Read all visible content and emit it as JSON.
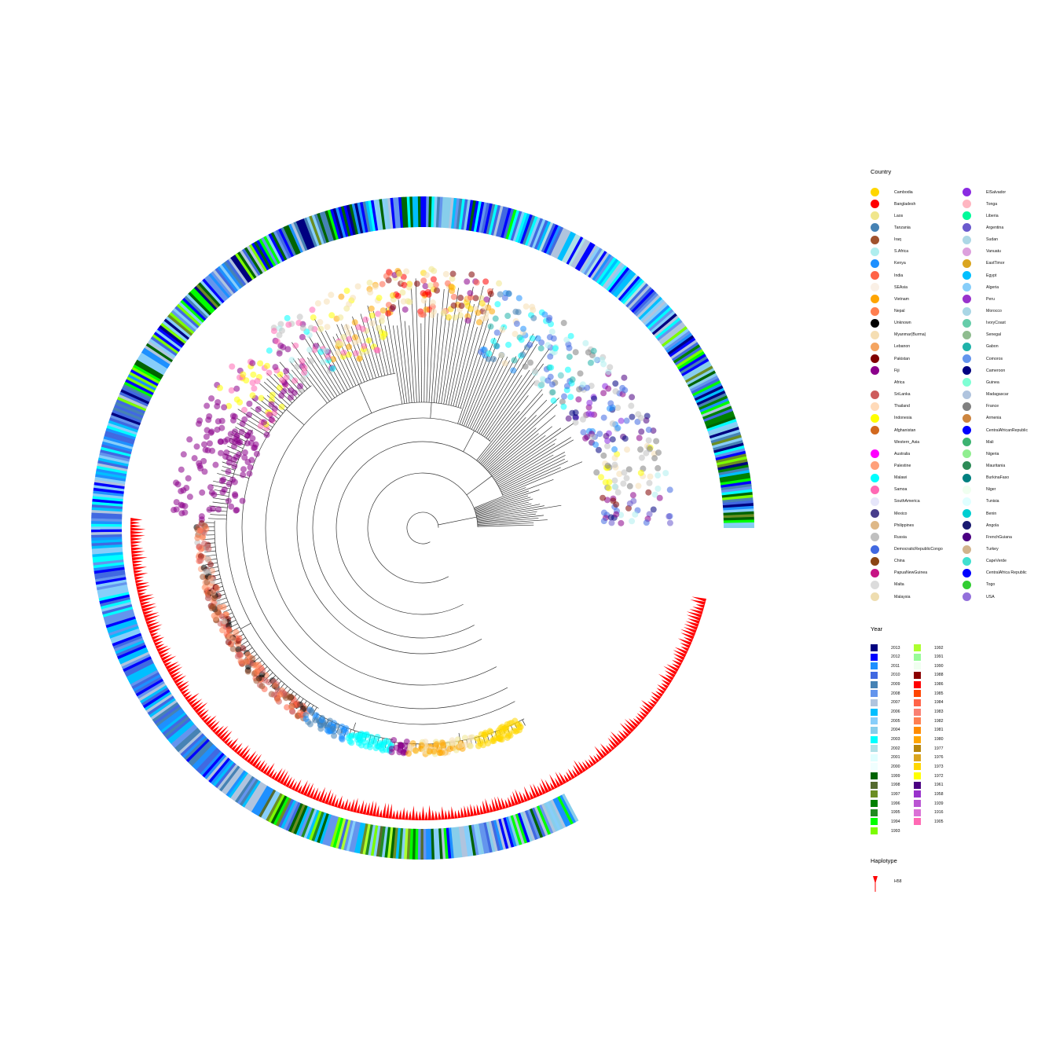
{
  "legend": {
    "country_title": "Country",
    "year_title": "Year",
    "haplotype_title": "Haplotype",
    "countries": [
      {
        "name": "Cambodia",
        "color": "#FFD700"
      },
      {
        "name": "Bangladesh",
        "color": "#FF0000"
      },
      {
        "name": "Laos",
        "color": "#F0E68C"
      },
      {
        "name": "Tanzania",
        "color": "#4682B4"
      },
      {
        "name": "Iraq",
        "color": "#A0522D"
      },
      {
        "name": "S.Africa",
        "color": "#AFEEEE"
      },
      {
        "name": "Kenya",
        "color": "#1E90FF"
      },
      {
        "name": "India",
        "color": "#FF6347"
      },
      {
        "name": "SEAsia",
        "color": "#FAF0E6"
      },
      {
        "name": "Vietnam",
        "color": "#FFA500"
      },
      {
        "name": "Nepal",
        "color": "#FF7F50"
      },
      {
        "name": "Unknown",
        "color": "#000000"
      },
      {
        "name": "Myanmar(Burma)",
        "color": "#F5DEB3"
      },
      {
        "name": "Lebanon",
        "color": "#F4A460"
      },
      {
        "name": "Pakistan",
        "color": "#800000"
      },
      {
        "name": "Fiji",
        "color": "#8B008B"
      },
      {
        "name": "Africa",
        "color": "#FFFFFF"
      },
      {
        "name": "SriLanka",
        "color": "#CD5C5C"
      },
      {
        "name": "Thailand",
        "color": "#FFDAB9"
      },
      {
        "name": "Indonesia",
        "color": "#FFFF00"
      },
      {
        "name": "Afghanistan",
        "color": "#D2691E"
      },
      {
        "name": "Western_Asia",
        "color": "#FFFFFF"
      },
      {
        "name": "Australia",
        "color": "#FF00FF"
      },
      {
        "name": "Palestine",
        "color": "#FFA07A"
      },
      {
        "name": "Malawi",
        "color": "#00FFFF"
      },
      {
        "name": "Samoa",
        "color": "#FF69B4"
      },
      {
        "name": "SouthAmerica",
        "color": "#E6E6FA"
      },
      {
        "name": "Mexico",
        "color": "#483D8B"
      },
      {
        "name": "Philippines",
        "color": "#DEB887"
      },
      {
        "name": "Russia",
        "color": "#C0C0C0"
      },
      {
        "name": "DemocraticRepublicCongo",
        "color": "#4169E1"
      },
      {
        "name": "China",
        "color": "#8B4513"
      },
      {
        "name": "PapuaNewGuinea",
        "color": "#C71585"
      },
      {
        "name": "Malta",
        "color": "#DCDCDC"
      },
      {
        "name": "Malaysia",
        "color": "#EEDDB0"
      },
      {
        "name": "ElSalvador",
        "color": "#8A2BE2"
      },
      {
        "name": "Tonga",
        "color": "#FFB6C1"
      },
      {
        "name": "Liberia",
        "color": "#00FA9A"
      },
      {
        "name": "Argentina",
        "color": "#6A5ACD"
      },
      {
        "name": "Sudan",
        "color": "#ADD8E6"
      },
      {
        "name": "Vanuatu",
        "color": "#DDA0DD"
      },
      {
        "name": "EastTimor",
        "color": "#DAA520"
      },
      {
        "name": "Egypt",
        "color": "#00BFFF"
      },
      {
        "name": "Algeria",
        "color": "#87CEFA"
      },
      {
        "name": "Peru",
        "color": "#9932CC"
      },
      {
        "name": "Morocco",
        "color": "#A9D6E5"
      },
      {
        "name": "IvoryCoast",
        "color": "#66CDAA"
      },
      {
        "name": "Senegal",
        "color": "#8FBC8F"
      },
      {
        "name": "Gabon",
        "color": "#20B2AA"
      },
      {
        "name": "Comoros",
        "color": "#6495ED"
      },
      {
        "name": "Cameroon",
        "color": "#000080"
      },
      {
        "name": "Guinea",
        "color": "#7FFFD4"
      },
      {
        "name": "Madagascar",
        "color": "#B0C4DE"
      },
      {
        "name": "France",
        "color": "#808080"
      },
      {
        "name": "Armenia",
        "color": "#CD853F"
      },
      {
        "name": "CentralAfricanRepublic",
        "color": "#0000FF"
      },
      {
        "name": "Mali",
        "color": "#3CB371"
      },
      {
        "name": "Nigeria",
        "color": "#90EE90"
      },
      {
        "name": "Mauritania",
        "color": "#2E8B57"
      },
      {
        "name": "BurkinaFaso",
        "color": "#008080"
      },
      {
        "name": "Niger",
        "color": "#F0FFF0"
      },
      {
        "name": "Tunisia",
        "color": "#E0FFFF"
      },
      {
        "name": "Benin",
        "color": "#00CED1"
      },
      {
        "name": "Angola",
        "color": "#191970"
      },
      {
        "name": "FrenchGuiana",
        "color": "#4B0082"
      },
      {
        "name": "Turkey",
        "color": "#D2B48C"
      },
      {
        "name": "CapeVerde",
        "color": "#40E0D0"
      },
      {
        "name": "CentralAfrica Republic",
        "color": "#0000FF"
      },
      {
        "name": "Togo",
        "color": "#32CD32"
      },
      {
        "name": "USA",
        "color": "#9370DB"
      }
    ],
    "years": [
      {
        "name": "2013",
        "color": "#000080"
      },
      {
        "name": "2012",
        "color": "#0000FF"
      },
      {
        "name": "2011",
        "color": "#1E90FF"
      },
      {
        "name": "2010",
        "color": "#4169E1"
      },
      {
        "name": "2009",
        "color": "#4682B4"
      },
      {
        "name": "2008",
        "color": "#6495ED"
      },
      {
        "name": "2007",
        "color": "#B0C4DE"
      },
      {
        "name": "2006",
        "color": "#00BFFF"
      },
      {
        "name": "2005",
        "color": "#87CEFA"
      },
      {
        "name": "2004",
        "color": "#87CEEB"
      },
      {
        "name": "2003",
        "color": "#00FFFF"
      },
      {
        "name": "2002",
        "color": "#B0E0E6"
      },
      {
        "name": "2001",
        "color": "#E0FFFF"
      },
      {
        "name": "2000",
        "color": "#F0FFFF"
      },
      {
        "name": "1999",
        "color": "#006400"
      },
      {
        "name": "1998",
        "color": "#556B2F"
      },
      {
        "name": "1997",
        "color": "#6B8E23"
      },
      {
        "name": "1996",
        "color": "#008000"
      },
      {
        "name": "1995",
        "color": "#228B22"
      },
      {
        "name": "1994",
        "color": "#00FF00"
      },
      {
        "name": "1993",
        "color": "#7CFC00"
      },
      {
        "name": "1992",
        "color": "#ADFF2F"
      },
      {
        "name": "1991",
        "color": "#98FB98"
      },
      {
        "name": "1990",
        "color": "#F0FFF0"
      },
      {
        "name": "1988",
        "color": "#8B0000"
      },
      {
        "name": "1986",
        "color": "#FF0000"
      },
      {
        "name": "1985",
        "color": "#FF4500"
      },
      {
        "name": "1984",
        "color": "#FF6347"
      },
      {
        "name": "1983",
        "color": "#FA8072"
      },
      {
        "name": "1982",
        "color": "#FF7F50"
      },
      {
        "name": "1981",
        "color": "#FF8C00"
      },
      {
        "name": "1980",
        "color": "#FFA500"
      },
      {
        "name": "1977",
        "color": "#B8860B"
      },
      {
        "name": "1976",
        "color": "#DAA520"
      },
      {
        "name": "1973",
        "color": "#FFD700"
      },
      {
        "name": "1972",
        "color": "#FFFF00"
      },
      {
        "name": "1961",
        "color": "#4B0082"
      },
      {
        "name": "1958",
        "color": "#9932CC"
      },
      {
        "name": "1939",
        "color": "#BA55D3"
      },
      {
        "name": "1916",
        "color": "#DA70D6"
      },
      {
        "name": "1905",
        "color": "#FF69B4"
      }
    ],
    "haplotypes": [
      {
        "name": "H58",
        "color": "#FF0000"
      }
    ]
  }
}
